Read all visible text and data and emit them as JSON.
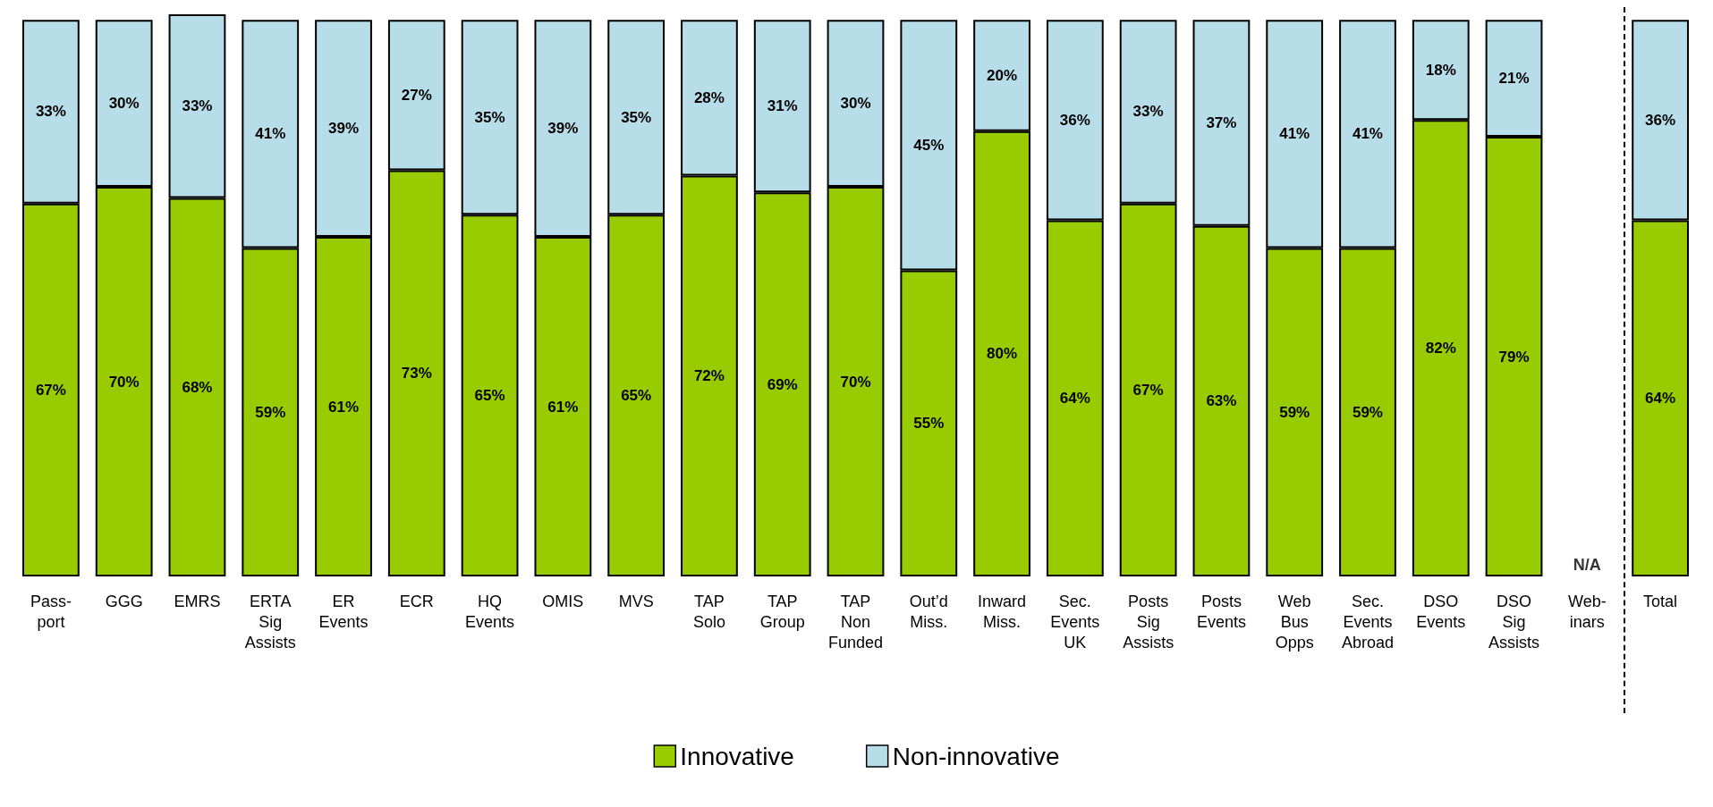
{
  "chart_data": {
    "type": "bar",
    "stacked": true,
    "legend": "bottom",
    "grid": false,
    "categories": [
      "Pass-\nport",
      "GGG",
      "EMRS",
      "ERTA\nSig\nAssists",
      "ER\nEvents",
      "ECR",
      "HQ\nEvents",
      "OMIS",
      "MVS",
      "TAP\nSolo",
      "TAP\nGroup",
      "TAP\nNon\nFunded",
      "Out’d\nMiss.",
      "Inward\nMiss.",
      "Sec.\nEvents\nUK",
      "Posts\nSig\nAssists",
      "Posts\nEvents",
      "Web\nBus\nOpps",
      "Sec.\nEvents\nAbroad",
      "DSO\nEvents",
      "DSO\nSig\nAssists",
      "Web-\ninars",
      "Total"
    ],
    "series": [
      {
        "name": "Innovative",
        "color": "#99cc00",
        "values": [
          67,
          70,
          68,
          59,
          61,
          73,
          65,
          61,
          65,
          72,
          69,
          70,
          55,
          80,
          64,
          67,
          63,
          59,
          59,
          82,
          79,
          null,
          64
        ],
        "value_labels": [
          "67%",
          "70%",
          "68%",
          "59%",
          "61%",
          "73%",
          "65%",
          "61%",
          "65%",
          "72%",
          "69%",
          "70%",
          "55%",
          "80%",
          "64%",
          "67%",
          "63%",
          "59%",
          "59%",
          "82%",
          "79%",
          null,
          "64%"
        ]
      },
      {
        "name": "Non-innovative",
        "color": "#b7dde8",
        "values": [
          33,
          30,
          33,
          41,
          39,
          27,
          35,
          39,
          35,
          28,
          31,
          30,
          45,
          20,
          36,
          33,
          37,
          41,
          41,
          18,
          21,
          null,
          36
        ],
        "value_labels": [
          "33%",
          "30%",
          "33%",
          "41%",
          "39%",
          "27%",
          "35%",
          "39%",
          "35%",
          "28%",
          "31%",
          "30%",
          "45%",
          "20%",
          "36%",
          "33%",
          "37%",
          "41%",
          "41%",
          "18%",
          "21%",
          null,
          "36%"
        ]
      }
    ],
    "annotations": [
      "N/A"
    ]
  }
}
